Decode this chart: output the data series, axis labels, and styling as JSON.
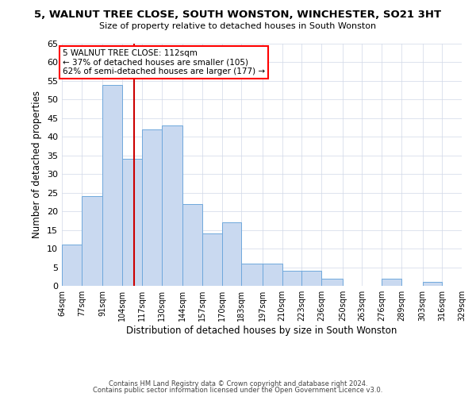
{
  "title": "5, WALNUT TREE CLOSE, SOUTH WONSTON, WINCHESTER, SO21 3HT",
  "subtitle": "Size of property relative to detached houses in South Wonston",
  "xlabel": "Distribution of detached houses by size in South Wonston",
  "ylabel": "Number of detached properties",
  "bar_color": "#c9d9f0",
  "bar_edge_color": "#6fa8dc",
  "background_color": "#ffffff",
  "grid_color": "#d0d8e8",
  "annotation_text": "5 WALNUT TREE CLOSE: 112sqm\n← 37% of detached houses are smaller (105)\n62% of semi-detached houses are larger (177) →",
  "vline_x": 112,
  "vline_color": "#cc0000",
  "bin_edges": [
    64,
    77,
    91,
    104,
    117,
    130,
    144,
    157,
    170,
    183,
    197,
    210,
    223,
    236,
    250,
    263,
    276,
    289,
    303,
    316,
    329
  ],
  "bin_labels": [
    "64sqm",
    "77sqm",
    "91sqm",
    "104sqm",
    "117sqm",
    "130sqm",
    "144sqm",
    "157sqm",
    "170sqm",
    "183sqm",
    "197sqm",
    "210sqm",
    "223sqm",
    "236sqm",
    "250sqm",
    "263sqm",
    "276sqm",
    "289sqm",
    "303sqm",
    "316sqm",
    "329sqm"
  ],
  "counts": [
    11,
    24,
    54,
    34,
    42,
    43,
    22,
    14,
    17,
    6,
    6,
    4,
    4,
    2,
    0,
    0,
    2,
    0,
    1,
    0
  ],
  "ylim": [
    0,
    65
  ],
  "yticks": [
    0,
    5,
    10,
    15,
    20,
    25,
    30,
    35,
    40,
    45,
    50,
    55,
    60,
    65
  ],
  "footer_line1": "Contains HM Land Registry data © Crown copyright and database right 2024.",
  "footer_line2": "Contains public sector information licensed under the Open Government Licence v3.0."
}
